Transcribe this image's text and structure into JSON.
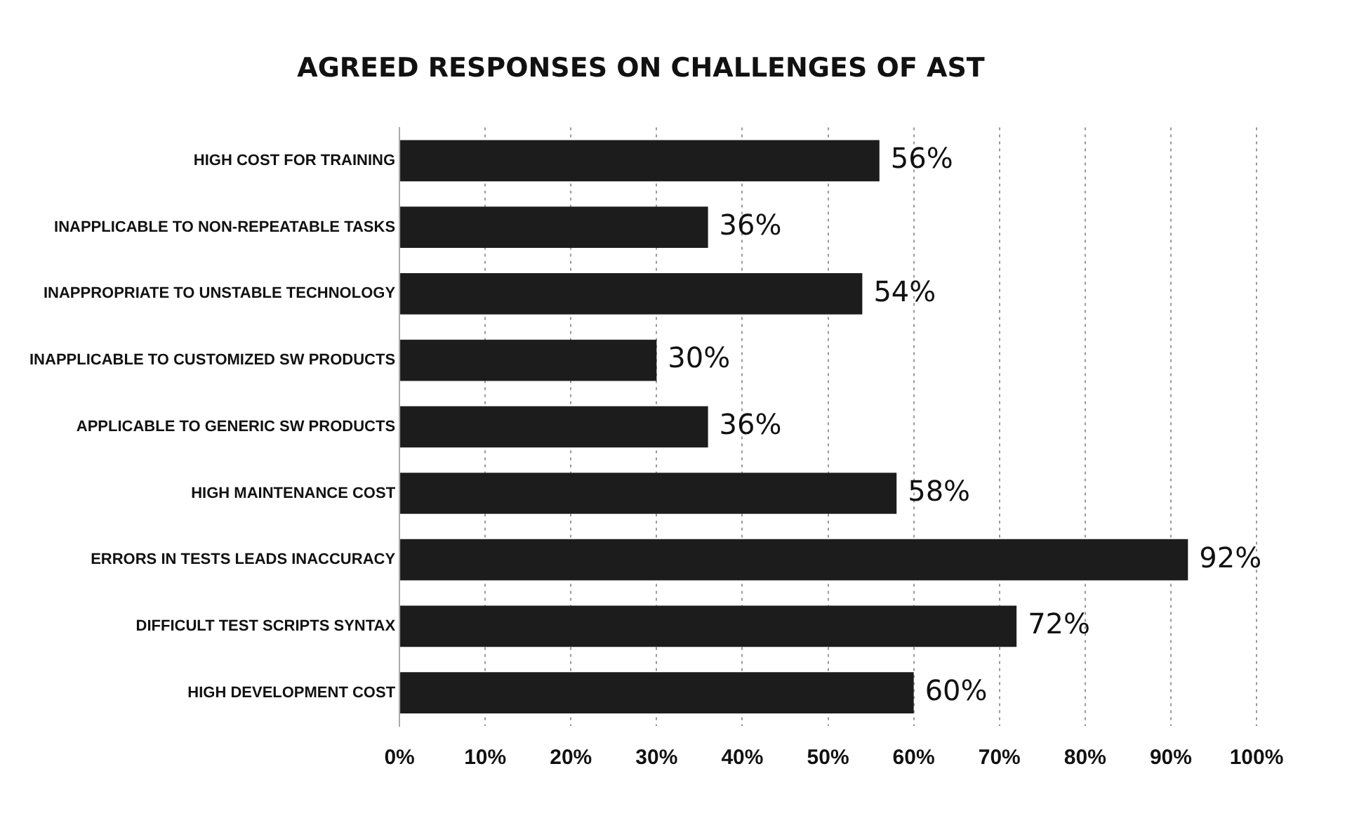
{
  "chart_data": {
    "type": "bar",
    "orientation": "horizontal",
    "title": "AGREED RESPONSES ON CHALLENGES OF AST",
    "categories": [
      "HIGH COST FOR TRAINING",
      "INAPPLICABLE TO NON-REPEATABLE TASKS",
      "INAPPROPRIATE TO UNSTABLE TECHNOLOGY",
      "INAPPLICABLE TO CUSTOMIZED SW PRODUCTS",
      "APPLICABLE TO GENERIC SW PRODUCTS",
      "HIGH MAINTENANCE COST",
      "ERRORS IN TESTS LEADS INACCURACY",
      "DIFFICULT TEST SCRIPTS SYNTAX",
      "HIGH DEVELOPMENT COST"
    ],
    "values": [
      56,
      36,
      54,
      30,
      36,
      58,
      92,
      72,
      60
    ],
    "value_labels": [
      "56%",
      "36%",
      "54%",
      "30%",
      "36%",
      "58%",
      "92%",
      "72%",
      "60%"
    ],
    "color": "#1c1c1c",
    "xlim": [
      0,
      100
    ],
    "xticks": [
      {
        "value": 0,
        "label": "0%"
      },
      {
        "value": 10,
        "label": "10%"
      },
      {
        "value": 20,
        "label": "20%"
      },
      {
        "value": 30,
        "label": "30%"
      },
      {
        "value": 40,
        "label": "40%"
      },
      {
        "value": 50,
        "label": "50%"
      },
      {
        "value": 60,
        "label": "60%"
      },
      {
        "value": 70,
        "label": "70%"
      },
      {
        "value": 80,
        "label": "80%"
      },
      {
        "value": 90,
        "label": "90%"
      },
      {
        "value": 100,
        "label": "100%"
      }
    ],
    "grid": "x"
  }
}
